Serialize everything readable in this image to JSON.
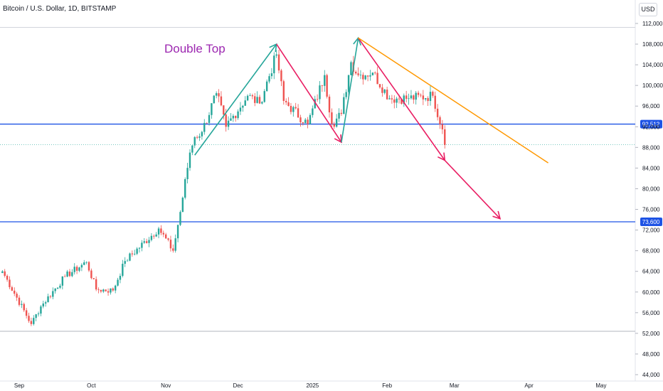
{
  "header": {
    "title": "Bitcoin / U.S. Dollar, 1D, BITSTAMP",
    "currency": "USD"
  },
  "chart_data": {
    "type": "candlestick",
    "symbol": "Bitcoin / U.S. Dollar",
    "interval": "1D",
    "exchange": "BITSTAMP",
    "ylim": [
      44000,
      114000
    ],
    "y_ticks": [
      44000,
      48000,
      52000,
      56000,
      60000,
      64000,
      68000,
      72000,
      76000,
      80000,
      84000,
      88000,
      92000,
      96000,
      100000,
      104000,
      108000,
      112000
    ],
    "y_tick_labels": [
      "44,000",
      "48,000",
      "52,000",
      "56,000",
      "60,000",
      "64,000",
      "68,000",
      "72,000",
      "76,000",
      "80,000",
      "84,000",
      "88,000",
      "92,000",
      "96,000",
      "100,000",
      "104,000",
      "108,000",
      "112,000"
    ],
    "x_ticks": [
      {
        "label": "Sep",
        "date": "2024-09-01"
      },
      {
        "label": "Oct",
        "date": "2024-10-01"
      },
      {
        "label": "Nov",
        "date": "2024-11-01"
      },
      {
        "label": "Dec",
        "date": "2024-12-01"
      },
      {
        "label": "2025",
        "date": "2025-01-01"
      },
      {
        "label": "Feb",
        "date": "2025-02-01"
      },
      {
        "label": "Mar",
        "date": "2025-03-01"
      },
      {
        "label": "Apr",
        "date": "2025-04-01"
      },
      {
        "label": "May",
        "date": "2025-05-01"
      }
    ],
    "colors": {
      "up": "#26a69a",
      "down": "#ef5350",
      "level": "#1e53e5",
      "zigzag_up": "#26a69a",
      "zigzag_down": "#e91e63",
      "trend": "#ff9800",
      "annotation": "#9c27b0"
    },
    "anchors": [
      {
        "date": "2024-08-25",
        "close": 64000
      },
      {
        "date": "2024-09-06",
        "close": 53800
      },
      {
        "date": "2024-09-10",
        "close": 57200
      },
      {
        "date": "2024-09-20",
        "close": 63000
      },
      {
        "date": "2024-09-29",
        "close": 65800
      },
      {
        "date": "2024-10-03",
        "close": 60500
      },
      {
        "date": "2024-10-10",
        "close": 60300
      },
      {
        "date": "2024-10-15",
        "close": 66000
      },
      {
        "date": "2024-10-29",
        "close": 72300
      },
      {
        "date": "2024-11-04",
        "close": 68000
      },
      {
        "date": "2024-11-07",
        "close": 75500
      },
      {
        "date": "2024-11-11",
        "close": 87000
      },
      {
        "date": "2024-11-13",
        "close": 90000
      },
      {
        "date": "2024-11-16",
        "close": 91000
      },
      {
        "date": "2024-11-22",
        "close": 98500
      },
      {
        "date": "2024-11-26",
        "close": 92000
      },
      {
        "date": "2024-12-05",
        "close": 98000
      },
      {
        "date": "2024-12-10",
        "close": 96500
      },
      {
        "date": "2024-12-17",
        "close": 106000
      },
      {
        "date": "2024-12-20",
        "close": 97000
      },
      {
        "date": "2024-12-30",
        "close": 92500
      },
      {
        "date": "2025-01-06",
        "close": 102000
      },
      {
        "date": "2025-01-09",
        "close": 92500
      },
      {
        "date": "2025-01-13",
        "close": 94500
      },
      {
        "date": "2025-01-17",
        "close": 104500
      },
      {
        "date": "2025-01-20",
        "close": 102000
      },
      {
        "date": "2025-01-26",
        "close": 102500
      },
      {
        "date": "2025-02-02",
        "close": 97500
      },
      {
        "date": "2025-02-10",
        "close": 97500
      },
      {
        "date": "2025-02-20",
        "close": 98000
      },
      {
        "date": "2025-02-24",
        "close": 91500
      },
      {
        "date": "2025-02-25",
        "close": 88500
      }
    ],
    "levels": [
      {
        "value": 92512,
        "label": "92,512"
      },
      {
        "value": 73600,
        "label": "73,600"
      }
    ],
    "zigzag": [
      {
        "date": "2024-11-13",
        "price": 86500
      },
      {
        "date": "2024-12-17",
        "price": 108000
      },
      {
        "date": "2025-01-13",
        "price": 89000
      },
      {
        "date": "2025-01-20",
        "price": 109200
      },
      {
        "date": "2025-02-25",
        "price": 85500
      },
      {
        "date": "2025-03-20",
        "price": 74200
      }
    ],
    "trend_line": [
      {
        "date": "2025-01-20",
        "price": 109200
      },
      {
        "date": "2025-04-09",
        "price": 85000
      }
    ],
    "annotation": "Double Top"
  }
}
